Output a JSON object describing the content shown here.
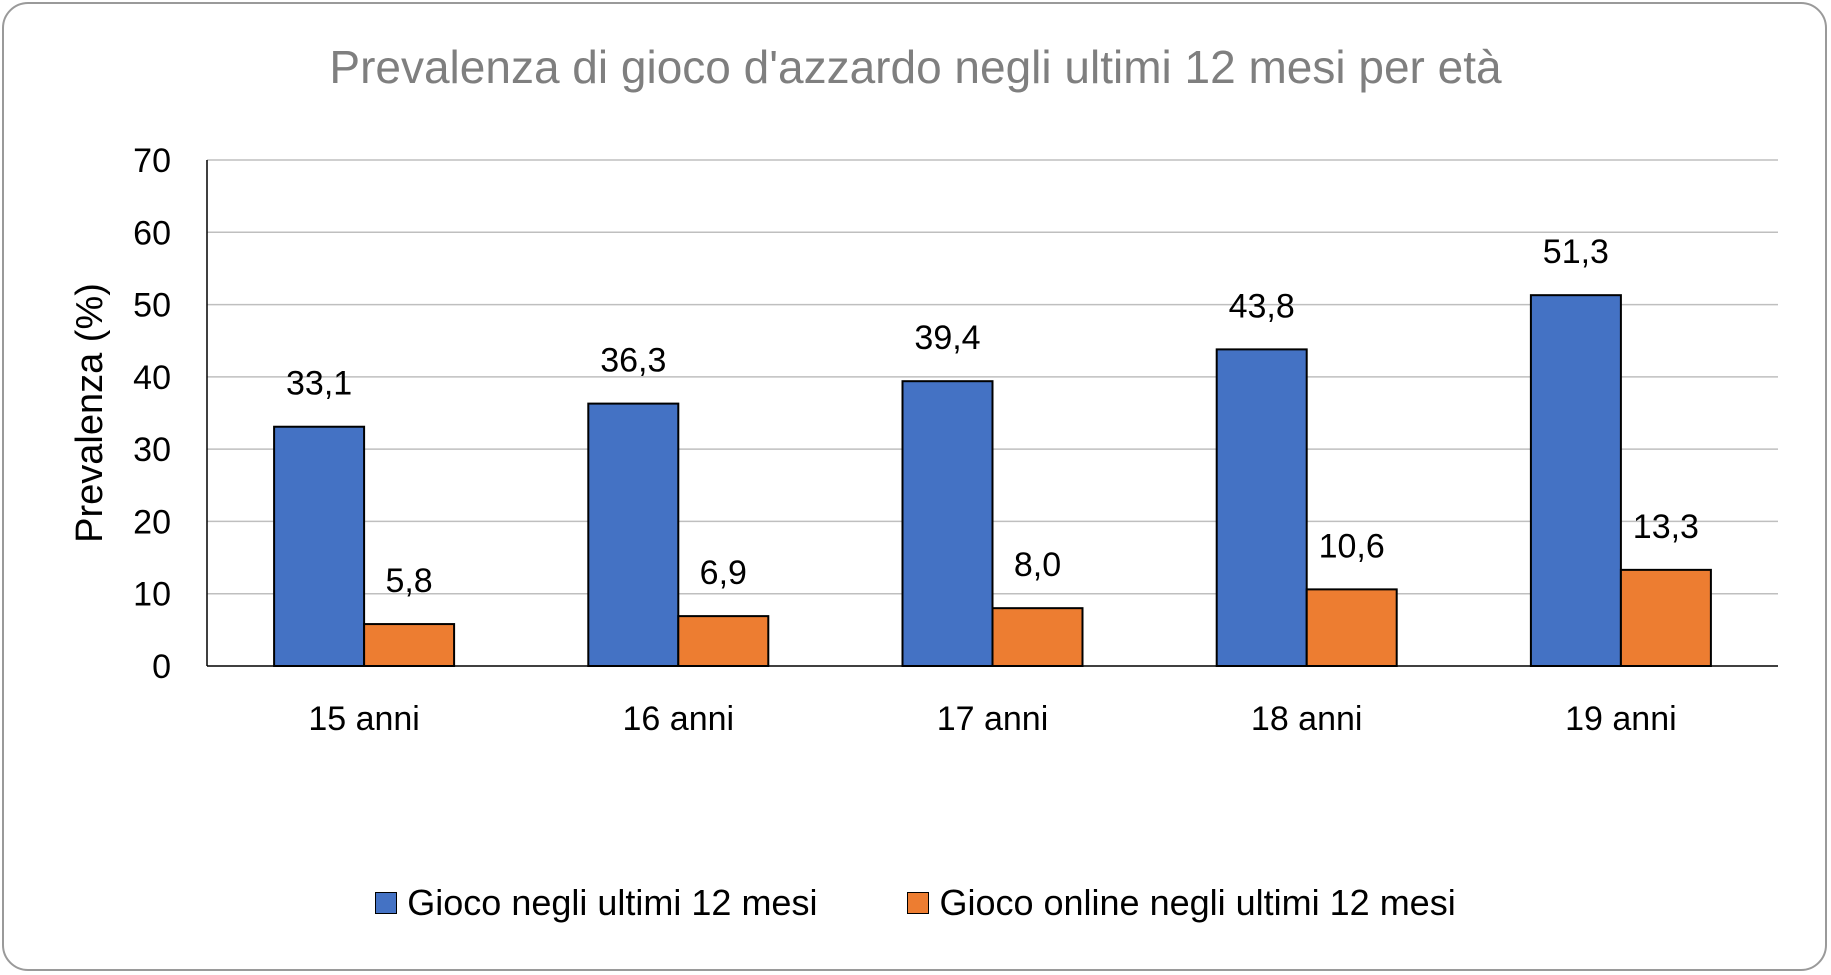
{
  "chart_data": {
    "type": "bar",
    "title": "Prevalenza di gioco d'azzardo negli ultimi 12 mesi per età",
    "ylabel": "Prevalenza (%)",
    "xlabel": "",
    "ylim": [
      0,
      70
    ],
    "yticks": [
      "0",
      "10",
      "20",
      "30",
      "40",
      "50",
      "60",
      "70"
    ],
    "grid": true,
    "legend_position": "bottom",
    "categories": [
      "15 anni",
      "16 anni",
      "17 anni",
      "18 anni",
      "19 anni"
    ],
    "series": [
      {
        "name": "Gioco negli ultimi 12 mesi",
        "color": "#4472c4",
        "values": [
          33.1,
          36.3,
          39.4,
          43.8,
          51.3
        ],
        "labels": [
          "33,1",
          "36,3",
          "39,4",
          "43,8",
          "51,3"
        ]
      },
      {
        "name": "Gioco online negli ultimi 12 mesi",
        "color": "#ed7d31",
        "values": [
          5.8,
          6.9,
          8.0,
          10.6,
          13.3
        ],
        "labels": [
          "5,8",
          "6,9",
          "8,0",
          "10,6",
          "13,3"
        ]
      }
    ]
  }
}
